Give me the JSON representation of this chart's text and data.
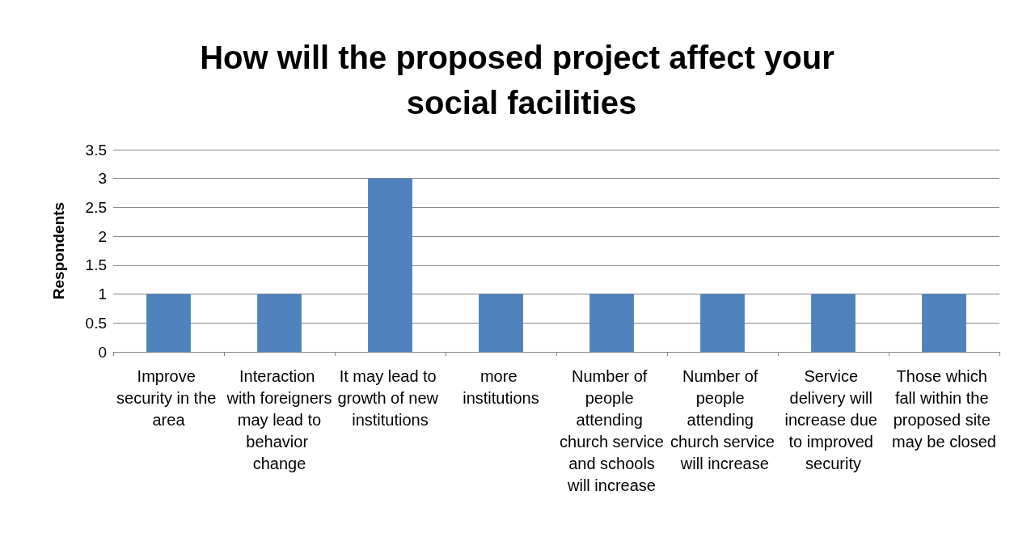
{
  "chart_data": {
    "type": "bar",
    "title": "How will the proposed project affect your social facilities",
    "ylabel": "Respondents",
    "categories": [
      "Improve security in the area",
      "Interaction with foreigners may lead to behavior change",
      "It may lead to growth of new institutions",
      "more institutions",
      "Number of people attending church service and schools will increase",
      "Number of people attending church service will increase",
      "Service delivery will increase due to improved security",
      "Those which fall within the proposed site may be closed"
    ],
    "values": [
      1,
      1,
      3,
      1,
      1,
      1,
      1,
      1
    ],
    "color": "#4f81bd",
    "ylim": [
      0,
      3.5
    ],
    "yticks": [
      0,
      0.5,
      1,
      1.5,
      2,
      2.5,
      3,
      3.5
    ],
    "grid": "y"
  }
}
